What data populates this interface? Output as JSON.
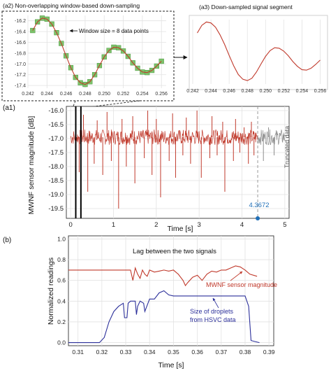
{
  "panels": {
    "a2": {
      "label": "(a2) Non-overlapping window-based down-sampling"
    },
    "a3": {
      "label": "(a3) Down-sampled signal segment"
    },
    "a1": {
      "label": "(a1)"
    },
    "b": {
      "label": "(b)"
    }
  },
  "colors": {
    "signal_red": "#c0392b",
    "truncated_gray": "#8c8c8c",
    "window_green": "#7cc26a",
    "hsvc_blue": "#2b2f9a",
    "marker_blue": "#1f6fb8"
  },
  "chart_data": [
    {
      "id": "a2",
      "type": "line",
      "title": "(a2) Non-overlapping window-based down-sampling",
      "x_ticks": [
        "0.242",
        "0.244",
        "0.246",
        "0.248",
        "0.250",
        "0.252",
        "0.254",
        "0.256"
      ],
      "y_ticks": [
        "-16.2",
        "-16.4",
        "-16.6",
        "-16.8",
        "-17.0",
        "-17.2",
        "-17.4"
      ],
      "xlim": [
        0.242,
        0.2565
      ],
      "ylim": [
        -17.45,
        -16.1
      ],
      "annotation": "Window size = 8 data points",
      "x": [
        0.2425,
        0.243,
        0.2435,
        0.244,
        0.2445,
        0.245,
        0.2455,
        0.246,
        0.2465,
        0.247,
        0.2475,
        0.248,
        0.2485,
        0.249,
        0.2495,
        0.25,
        0.2505,
        0.251,
        0.2515,
        0.252,
        0.2525,
        0.253,
        0.2535,
        0.254,
        0.2545,
        0.255,
        0.2555,
        0.256
      ],
      "y": [
        -16.38,
        -16.22,
        -16.15,
        -16.17,
        -16.26,
        -16.42,
        -16.62,
        -16.85,
        -17.07,
        -17.25,
        -17.35,
        -17.38,
        -17.33,
        -17.2,
        -17.03,
        -16.87,
        -16.75,
        -16.69,
        -16.7,
        -16.76,
        -16.86,
        -16.98,
        -17.08,
        -17.15,
        -17.16,
        -17.12,
        -17.04,
        -16.95
      ]
    },
    {
      "id": "a3",
      "type": "line",
      "title": "(a3) Down-sampled signal segment",
      "x_ticks": [
        "0.242",
        "0.244",
        "0.246",
        "0.248",
        "0.250",
        "0.252",
        "0.254",
        "0.256"
      ],
      "xlim": [
        0.242,
        0.2565
      ],
      "ylim": [
        -17.45,
        -16.1
      ],
      "x": [
        0.2425,
        0.243,
        0.2435,
        0.244,
        0.2445,
        0.245,
        0.2455,
        0.246,
        0.2465,
        0.247,
        0.2475,
        0.248,
        0.2485,
        0.249,
        0.2495,
        0.25,
        0.2505,
        0.251,
        0.2515,
        0.252,
        0.2525,
        0.253,
        0.2535,
        0.254,
        0.2545,
        0.255,
        0.2555,
        0.256
      ],
      "y": [
        -16.38,
        -16.22,
        -16.15,
        -16.17,
        -16.26,
        -16.42,
        -16.62,
        -16.85,
        -17.07,
        -17.25,
        -17.35,
        -17.38,
        -17.33,
        -17.2,
        -17.03,
        -16.87,
        -16.75,
        -16.69,
        -16.7,
        -16.76,
        -16.86,
        -16.98,
        -17.08,
        -17.15,
        -17.16,
        -17.12,
        -17.04,
        -16.95
      ]
    },
    {
      "id": "a1",
      "type": "line",
      "xlabel": "Time [s]",
      "ylabel": "MWNF sensor magnitude [dB]",
      "x_ticks": [
        "0",
        "1",
        "2",
        "3",
        "4",
        "5"
      ],
      "y_ticks": [
        "-16.0",
        "-16.5",
        "-17.0",
        "-17.5",
        "-18.0",
        "-18.5",
        "-19.0",
        "-19.5"
      ],
      "xlim": [
        -0.1,
        5.1
      ],
      "ylim": [
        -19.85,
        -15.85
      ],
      "baseline": -16.95,
      "truncation_time": 4.3672,
      "truncation_label": "4.3672",
      "truncated_label": "Truncated data",
      "window_marks": [
        0.12,
        0.24
      ],
      "spikes": [
        {
          "x": 0.2,
          "y": -18.2
        },
        {
          "x": 0.4,
          "y": -18.9
        },
        {
          "x": 0.55,
          "y": -17.9
        },
        {
          "x": 0.75,
          "y": -18.3
        },
        {
          "x": 0.95,
          "y": -17.8
        },
        {
          "x": 1.12,
          "y": -19.5
        },
        {
          "x": 1.3,
          "y": -18.0
        },
        {
          "x": 1.5,
          "y": -18.6
        },
        {
          "x": 1.72,
          "y": -17.7
        },
        {
          "x": 1.9,
          "y": -18.3
        },
        {
          "x": 2.1,
          "y": -19.1
        },
        {
          "x": 2.3,
          "y": -17.8
        },
        {
          "x": 2.45,
          "y": -18.4
        },
        {
          "x": 2.62,
          "y": -17.6
        },
        {
          "x": 2.8,
          "y": -17.9
        },
        {
          "x": 3.05,
          "y": -18.4
        },
        {
          "x": 3.25,
          "y": -17.7
        },
        {
          "x": 3.42,
          "y": -17.6
        },
        {
          "x": 3.6,
          "y": -18.9
        },
        {
          "x": 3.8,
          "y": -17.8
        },
        {
          "x": 3.95,
          "y": -17.5
        },
        {
          "x": 4.15,
          "y": -17.9
        },
        {
          "x": 4.28,
          "y": -17.6
        }
      ],
      "up_spikes": [
        {
          "x": 0.3,
          "y": -16.15
        },
        {
          "x": 0.62,
          "y": -16.35
        },
        {
          "x": 0.85,
          "y": -16.05
        },
        {
          "x": 1.2,
          "y": -16.3
        },
        {
          "x": 1.45,
          "y": -16.2
        },
        {
          "x": 1.8,
          "y": -16.0
        },
        {
          "x": 2.0,
          "y": -16.3
        },
        {
          "x": 2.38,
          "y": -16.1
        },
        {
          "x": 2.7,
          "y": -16.25
        },
        {
          "x": 2.95,
          "y": -16.0
        },
        {
          "x": 3.3,
          "y": -16.2
        },
        {
          "x": 3.55,
          "y": -16.4
        },
        {
          "x": 3.85,
          "y": -16.3
        },
        {
          "x": 4.05,
          "y": -16.6
        },
        {
          "x": 4.22,
          "y": -16.4
        }
      ],
      "truncated_spikes": [
        {
          "x": 4.5,
          "y": -17.8
        },
        {
          "x": 4.62,
          "y": -16.6
        },
        {
          "x": 4.75,
          "y": -17.6
        },
        {
          "x": 4.88,
          "y": -16.8
        }
      ]
    },
    {
      "id": "b",
      "type": "line",
      "xlabel": "Time [s]",
      "ylabel": "Normalized readings",
      "x_ticks": [
        "0.31",
        "0.32",
        "0.33",
        "0.34",
        "0.35",
        "0.36",
        "0.37",
        "0.38",
        "0.39"
      ],
      "y_ticks": [
        "0.0",
        "0.2",
        "0.4",
        "0.6",
        "0.8",
        "1.0"
      ],
      "xlim": [
        0.306,
        0.392
      ],
      "ylim": [
        -0.03,
        1.03
      ],
      "annotation_lag": "Lag between the two signals",
      "series": [
        {
          "name": "MWNF sensor magnitude",
          "color": "#c0392b",
          "x": [
            0.306,
            0.332,
            0.333,
            0.3335,
            0.334,
            0.335,
            0.336,
            0.337,
            0.338,
            0.339,
            0.34,
            0.342,
            0.344,
            0.346,
            0.348,
            0.35,
            0.352,
            0.354,
            0.355,
            0.356,
            0.358,
            0.36,
            0.362,
            0.364,
            0.366,
            0.368,
            0.37,
            0.372,
            0.374,
            0.376,
            0.378,
            0.38,
            0.382,
            0.385
          ],
          "y": [
            0.7,
            0.7,
            0.6,
            0.66,
            0.72,
            0.66,
            0.62,
            0.7,
            0.66,
            0.64,
            0.7,
            0.68,
            0.69,
            0.7,
            0.69,
            0.7,
            0.66,
            0.6,
            0.55,
            0.58,
            0.63,
            0.65,
            0.6,
            0.66,
            0.69,
            0.68,
            0.7,
            0.7,
            0.72,
            0.74,
            0.73,
            0.7,
            0.66,
            0.64
          ]
        },
        {
          "name": "Size of droplets from HSVC data",
          "color": "#2b2f9a",
          "x": [
            0.306,
            0.319,
            0.321,
            0.323,
            0.325,
            0.327,
            0.329,
            0.3295,
            0.3305,
            0.331,
            0.332,
            0.334,
            0.3345,
            0.335,
            0.336,
            0.3375,
            0.338,
            0.339,
            0.34,
            0.342,
            0.344,
            0.346,
            0.348,
            0.35,
            0.36,
            0.37,
            0.38,
            0.3815,
            0.3825,
            0.386
          ],
          "y": [
            0.0,
            0.0,
            0.05,
            0.2,
            0.3,
            0.35,
            0.38,
            0.24,
            0.24,
            0.38,
            0.4,
            0.4,
            0.27,
            0.35,
            0.4,
            0.38,
            0.3,
            0.36,
            0.42,
            0.42,
            0.48,
            0.5,
            0.46,
            0.45,
            0.45,
            0.45,
            0.45,
            0.35,
            0.02,
            0.0
          ]
        }
      ],
      "labels": [
        {
          "text": "MWNF sensor magnitude",
          "series": 0
        },
        {
          "text": "Size of droplets",
          "series": 1
        },
        {
          "text": "from HSVC data",
          "series": 1
        }
      ]
    }
  ]
}
